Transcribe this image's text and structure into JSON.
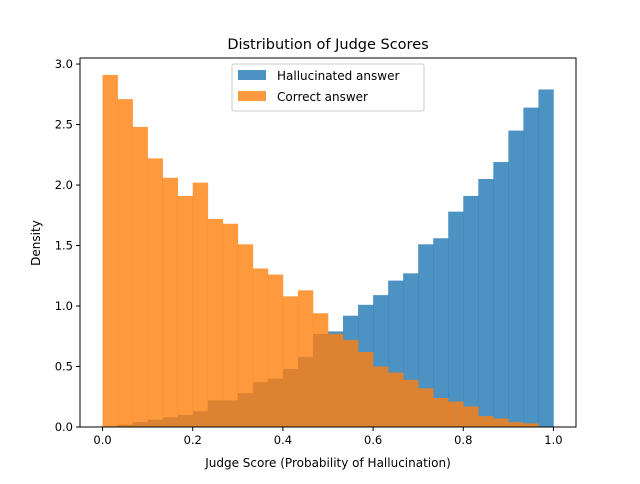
{
  "chart_data": {
    "type": "bar",
    "subtype": "overlaid-histogram",
    "title": "Distribution of Judge Scores",
    "xlabel": "Judge Score (Probability of Hallucination)",
    "ylabel": "Density",
    "xlim": [
      -0.05,
      1.05
    ],
    "ylim": [
      0,
      3.05
    ],
    "xticks": [
      0.0,
      0.2,
      0.4,
      0.6,
      0.8,
      1.0
    ],
    "xtick_labels": [
      "0.0",
      "0.2",
      "0.4",
      "0.6",
      "0.8",
      "1.0"
    ],
    "yticks": [
      0.0,
      0.5,
      1.0,
      1.5,
      2.0,
      2.5,
      3.0
    ],
    "ytick_labels": [
      "0.0",
      "0.5",
      "1.0",
      "1.5",
      "2.0",
      "2.5",
      "3.0"
    ],
    "grid": false,
    "legend_position": "upper center",
    "bin_edges_start": 0.0,
    "bin_width": 0.03333,
    "num_bins": 30,
    "series": [
      {
        "name": "Hallucinated answer",
        "color": "#1f77b4",
        "alpha": 0.8,
        "values": [
          0.0,
          0.02,
          0.04,
          0.06,
          0.08,
          0.1,
          0.13,
          0.22,
          0.22,
          0.28,
          0.37,
          0.4,
          0.48,
          0.58,
          0.77,
          0.79,
          0.92,
          1.01,
          1.09,
          1.21,
          1.27,
          1.51,
          1.56,
          1.78,
          1.91,
          2.05,
          2.19,
          2.45,
          2.64,
          2.79
        ]
      },
      {
        "name": "Correct answer",
        "color": "#ff7f0e",
        "alpha": 0.8,
        "values": [
          2.91,
          2.71,
          2.48,
          2.22,
          2.06,
          1.91,
          2.02,
          1.72,
          1.68,
          1.51,
          1.31,
          1.26,
          1.08,
          1.13,
          0.94,
          0.77,
          0.72,
          0.62,
          0.5,
          0.45,
          0.39,
          0.32,
          0.24,
          0.21,
          0.17,
          0.09,
          0.07,
          0.04,
          0.03,
          0.0
        ]
      }
    ]
  }
}
